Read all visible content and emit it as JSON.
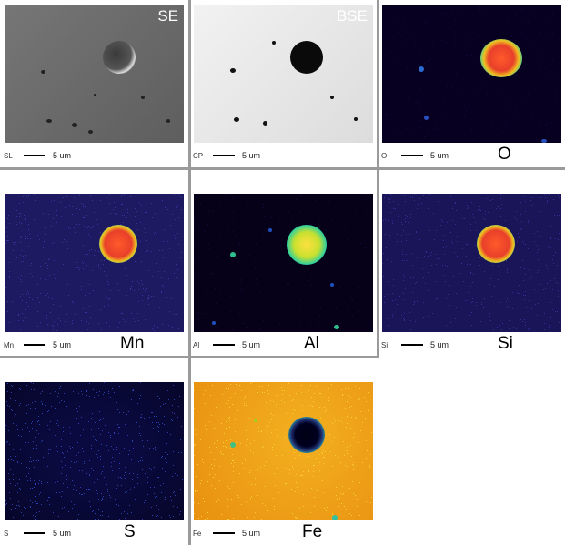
{
  "panels": [
    {
      "id": "se",
      "image_label": "SE",
      "caption_abbr": "SL",
      "scale": "5 um",
      "element": ""
    },
    {
      "id": "bse",
      "image_label": "BSE",
      "caption_abbr": "CP",
      "scale": "5 um",
      "element": ""
    },
    {
      "id": "o",
      "image_label": "",
      "caption_abbr": "O",
      "scale": "5 um",
      "element": "O"
    },
    {
      "id": "mn",
      "image_label": "",
      "caption_abbr": "Mn",
      "scale": "5 um",
      "element": "Mn"
    },
    {
      "id": "al",
      "image_label": "",
      "caption_abbr": "Al",
      "scale": "5 um",
      "element": "Al"
    },
    {
      "id": "si",
      "image_label": "",
      "caption_abbr": "Si",
      "scale": "5 um",
      "element": "Si"
    },
    {
      "id": "s",
      "image_label": "",
      "caption_abbr": "S",
      "scale": "5 um",
      "element": "S"
    },
    {
      "id": "fe",
      "image_label": "",
      "caption_abbr": "Fe",
      "scale": "5 um",
      "element": "Fe"
    }
  ],
  "colors": {
    "se_bg": "#6e6e6e",
    "bse_bg": "#e8e8e8",
    "map_dark": "#060018",
    "map_blue": "#1e1a6a",
    "inclusion_core": "#e84a2a",
    "inclusion_ring": "#2bd0a0",
    "fe_bg": "#f0a010"
  }
}
